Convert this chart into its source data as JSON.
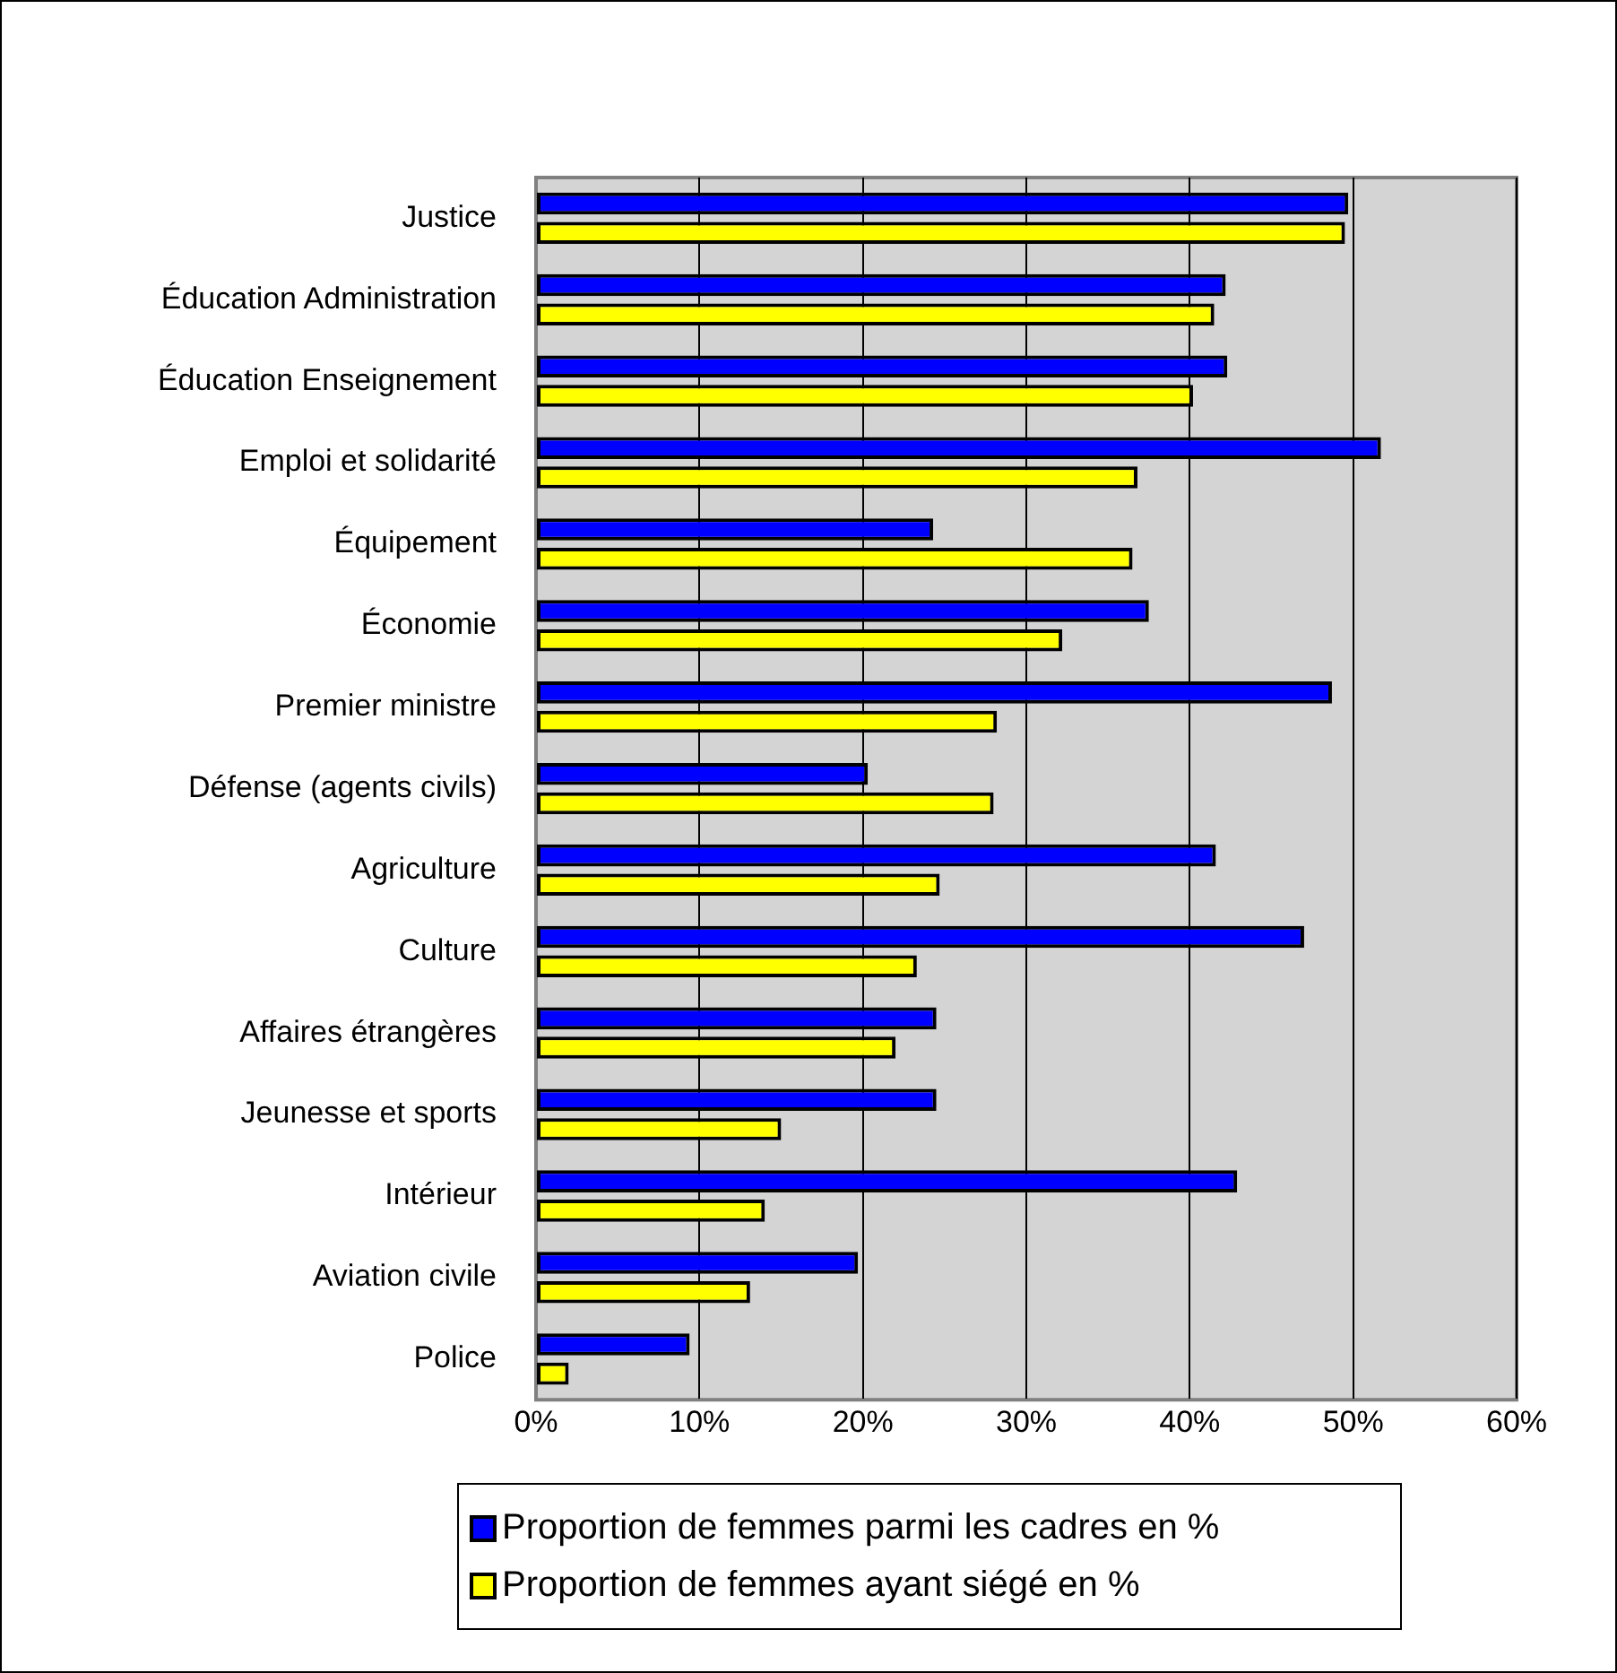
{
  "chart_data": {
    "type": "bar",
    "orientation": "horizontal",
    "categories": [
      "Justice",
      "Éducation Administration",
      "Éducation Enseignement",
      "Emploi et solidarité",
      "Équipement",
      "Économie",
      "Premier ministre",
      "Défense (agents civils)",
      "Agriculture",
      "Culture",
      "Affaires étrangères",
      "Jeunesse et sports",
      "Intérieur",
      "Aviation civile",
      "Police"
    ],
    "series": [
      {
        "name": "Proportion de femmes parmi les cadres en %",
        "color": "#0000ff",
        "values": [
          49.7,
          42.2,
          42.3,
          51.7,
          24.3,
          37.5,
          48.7,
          20.3,
          41.6,
          47.0,
          24.5,
          24.5,
          42.9,
          19.7,
          9.4
        ]
      },
      {
        "name": "Proportion de femmes ayant siégé en %",
        "color": "#ffff00",
        "values": [
          49.5,
          41.5,
          40.2,
          36.8,
          36.5,
          32.2,
          28.2,
          28.0,
          24.7,
          23.3,
          22.0,
          15.0,
          14.0,
          13.1,
          2.0
        ]
      }
    ],
    "xlim": [
      0,
      60
    ],
    "xticks": [
      {
        "value": 0,
        "label": "0%"
      },
      {
        "value": 10,
        "label": "10%"
      },
      {
        "value": 20,
        "label": "20%"
      },
      {
        "value": 30,
        "label": "30%"
      },
      {
        "value": 40,
        "label": "40%"
      },
      {
        "value": 50,
        "label": "50%"
      },
      {
        "value": 60,
        "label": "60%"
      }
    ],
    "grid": "x",
    "legend": "bottom"
  }
}
